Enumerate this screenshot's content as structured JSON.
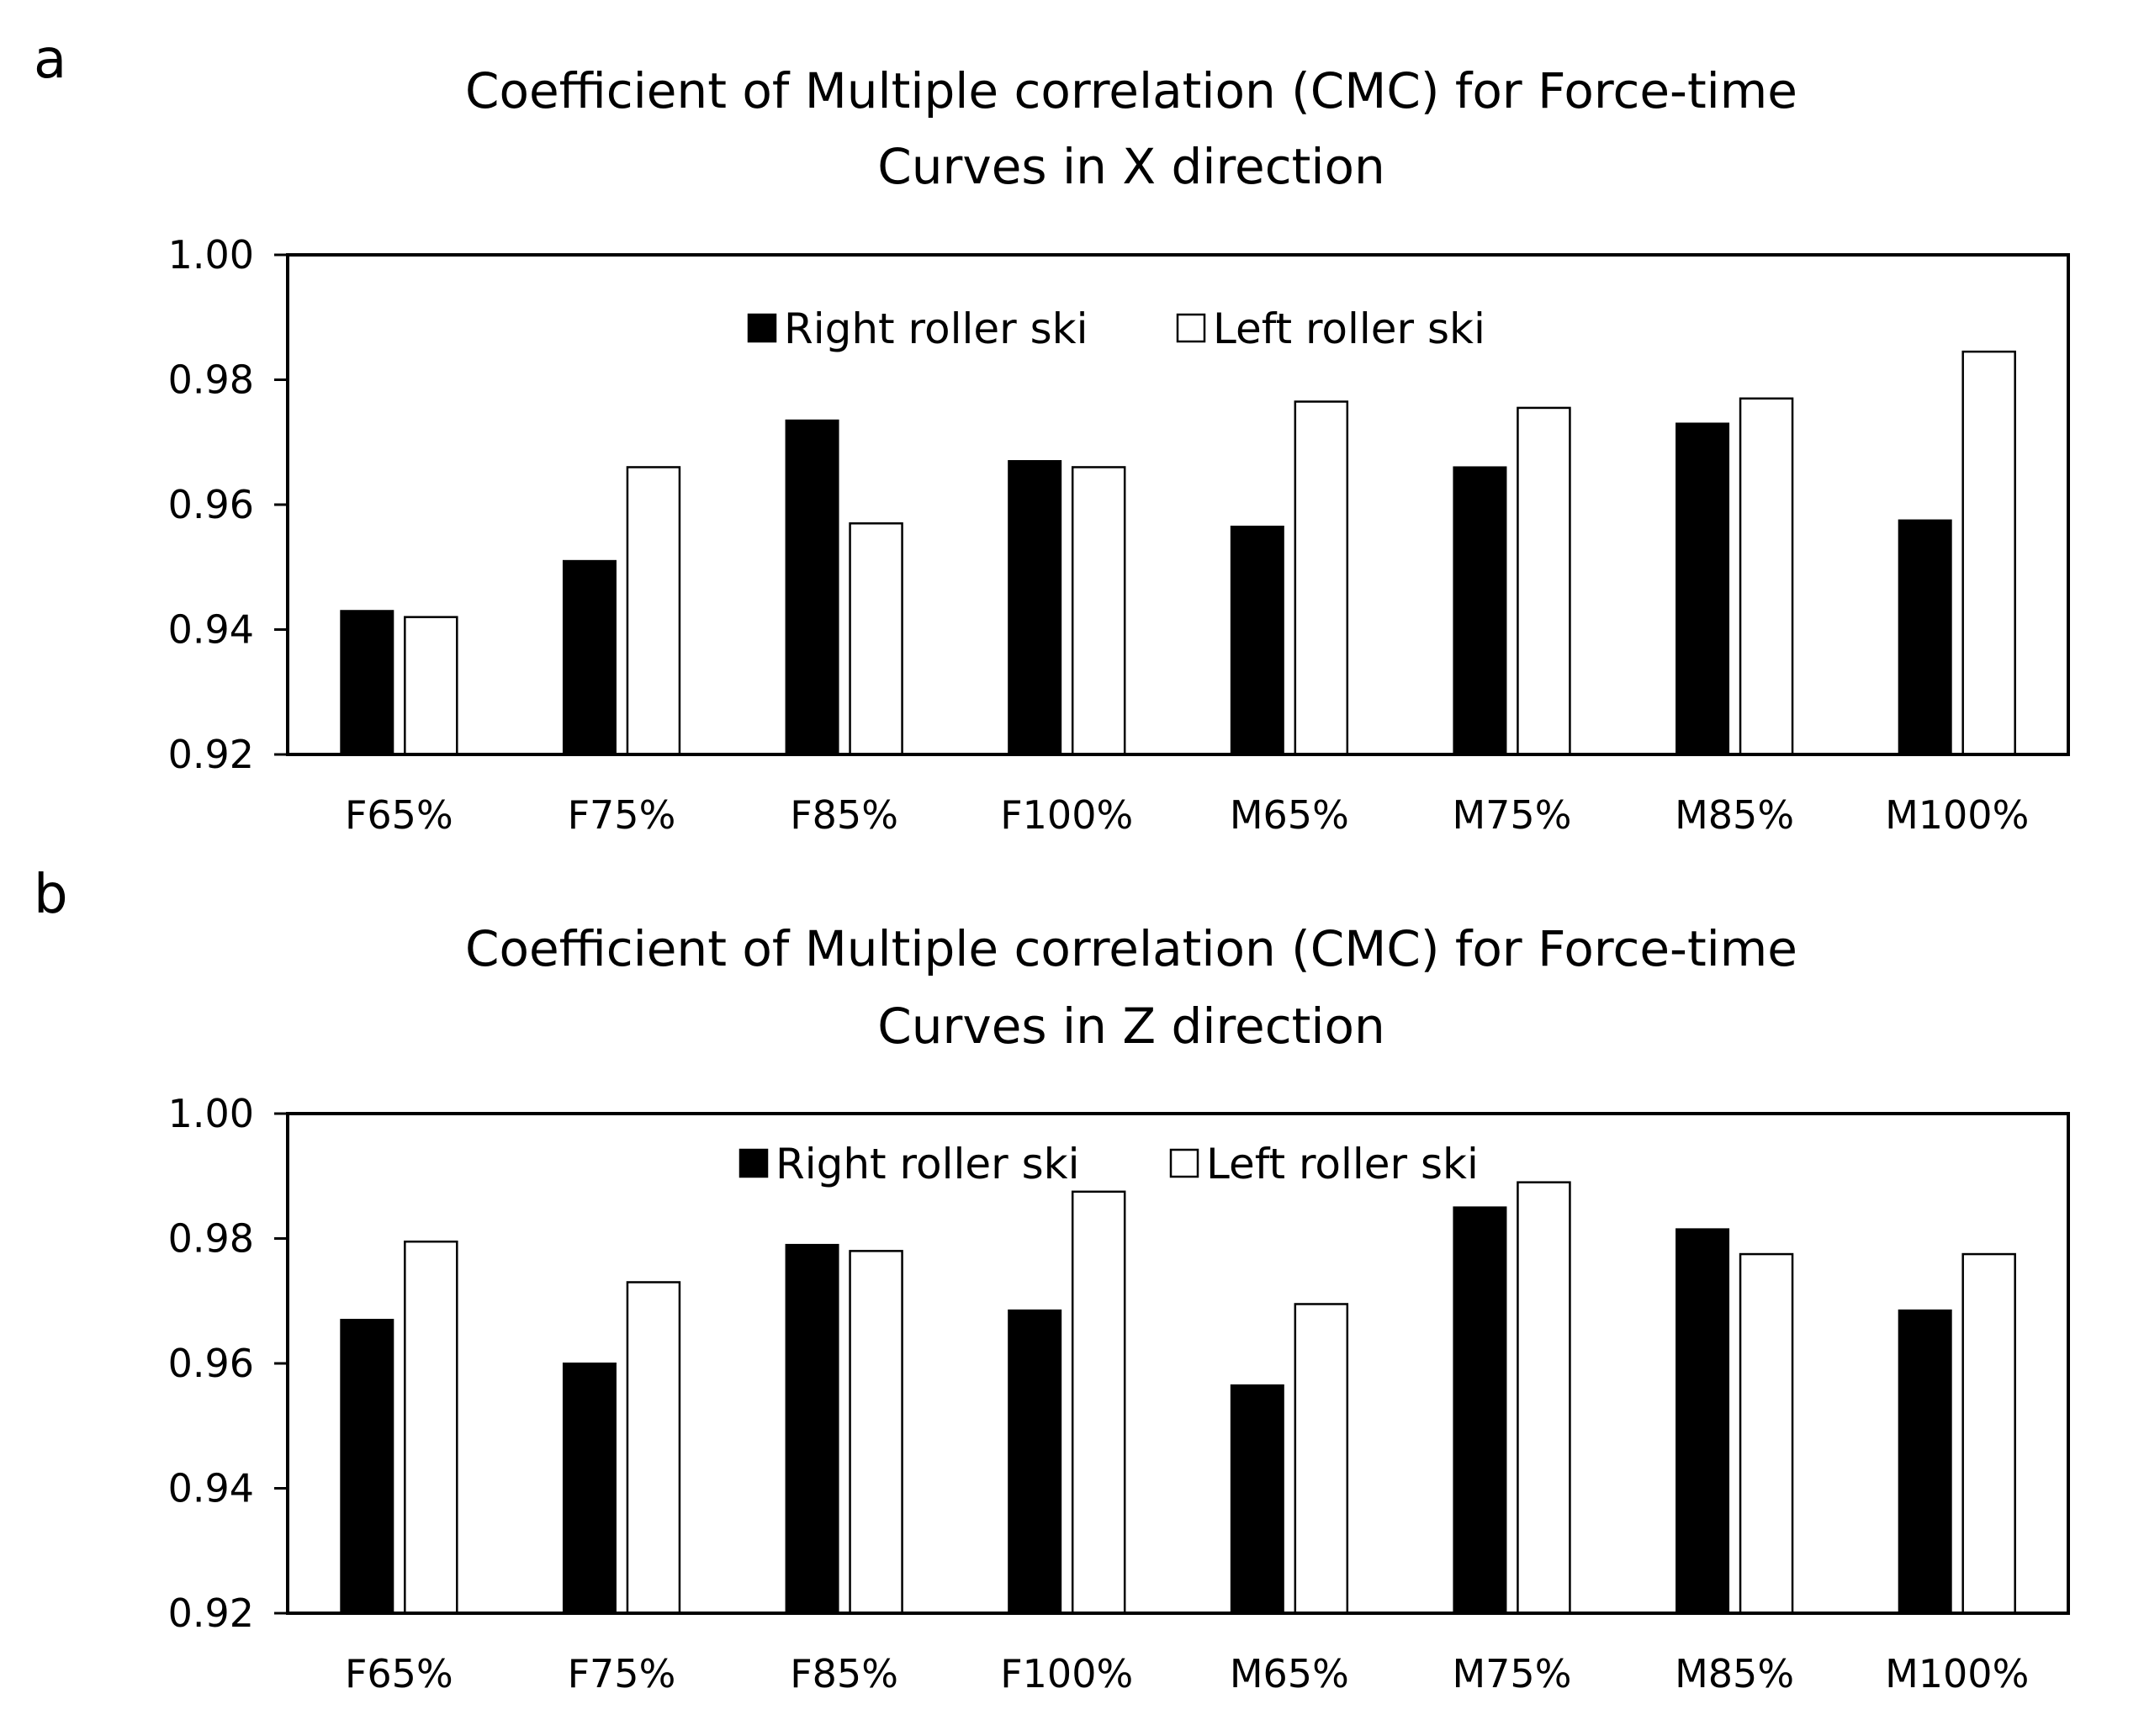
{
  "colors": {
    "right": "#000000",
    "left": "#ffffff",
    "stroke": "#000000"
  },
  "chart_data": [
    {
      "panel": "a",
      "type": "bar",
      "title": [
        "Coefficient of Multiple correlation (CMC) for Force-time",
        "Curves in X direction"
      ],
      "categories": [
        "F65%",
        "F75%",
        "F85%",
        "F100%",
        "M65%",
        "M75%",
        "M85%",
        "M100%"
      ],
      "series": [
        {
          "name": "Right roller ski",
          "values": [
            0.943,
            0.951,
            0.9735,
            0.967,
            0.9565,
            0.966,
            0.973,
            0.9575
          ]
        },
        {
          "name": "Left roller ski",
          "values": [
            0.942,
            0.966,
            0.957,
            0.966,
            0.9765,
            0.9755,
            0.977,
            0.9845
          ]
        }
      ],
      "yticks": [
        "1.00",
        "0.98",
        "0.96",
        "0.94",
        "0.92"
      ],
      "ylim": [
        0.92,
        1.0
      ],
      "xlabel": "",
      "ylabel": "",
      "legend": "top-center"
    },
    {
      "panel": "b",
      "type": "bar",
      "title": [
        "Coefficient of Multiple correlation (CMC) for Force-time",
        "Curves in Z direction"
      ],
      "categories": [
        "F65%",
        "F75%",
        "F85%",
        "F100%",
        "M65%",
        "M75%",
        "M85%",
        "M100%"
      ],
      "series": [
        {
          "name": "Right roller ski",
          "values": [
            0.967,
            0.96,
            0.979,
            0.9685,
            0.9565,
            0.985,
            0.9815,
            0.9685
          ]
        },
        {
          "name": "Left roller ski",
          "values": [
            0.9795,
            0.973,
            0.978,
            0.9875,
            0.9695,
            0.989,
            0.9775,
            0.9775
          ]
        }
      ],
      "yticks": [
        "1.00",
        "0.98",
        "0.96",
        "0.94",
        "0.92"
      ],
      "ylim": [
        0.92,
        1.0
      ],
      "xlabel": "",
      "ylabel": "",
      "legend": "top-center"
    }
  ]
}
